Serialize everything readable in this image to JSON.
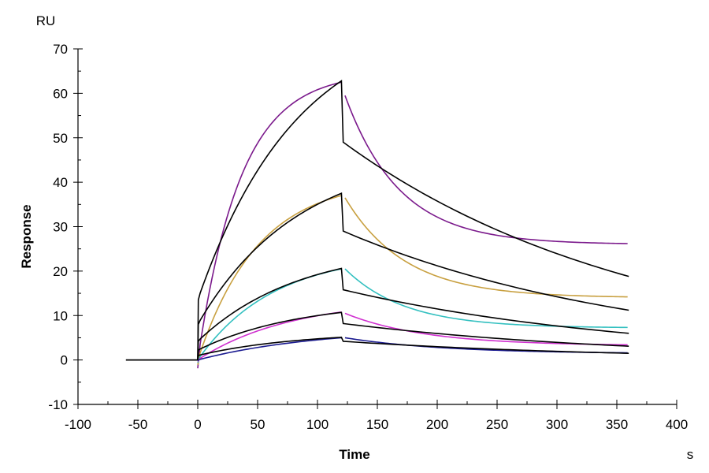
{
  "chart_data": {
    "type": "line",
    "title": "",
    "xlabel": "Time",
    "xunit": "s",
    "ylabel": "Response",
    "yunit": "RU",
    "xlim": [
      -100,
      400
    ],
    "ylim": [
      -10,
      70
    ],
    "xticks": [
      -100,
      -50,
      0,
      50,
      100,
      150,
      200,
      250,
      300,
      350,
      400
    ],
    "yticks": [
      -10,
      0,
      10,
      20,
      30,
      40,
      50,
      60,
      70
    ],
    "xtick_labels": [
      "-100",
      "-50",
      "0",
      "50",
      "100",
      "150",
      "200",
      "250",
      "300",
      "350",
      "400"
    ],
    "ytick_labels": [
      "-10",
      "0",
      "10",
      "20",
      "30",
      "40",
      "50",
      "60",
      "70"
    ],
    "grid": false,
    "legend": "none",
    "association_end": 120,
    "series": [
      {
        "name": "measured-1",
        "color": "#7B1A8C",
        "kind": "measured",
        "plateau": 62.5,
        "kon": 0.028,
        "dissoc_start": 59.5,
        "dissoc_end": 26.0,
        "koff": 0.022
      },
      {
        "name": "measured-2",
        "color": "#C8A040",
        "kind": "measured",
        "plateau": 37.0,
        "kon": 0.02,
        "dissoc_start": 36.5,
        "dissoc_end": 14.0,
        "koff": 0.02
      },
      {
        "name": "measured-3",
        "color": "#33C0C0",
        "kind": "measured",
        "plateau": 20.5,
        "kon": 0.016,
        "dissoc_start": 20.5,
        "dissoc_end": 7.2,
        "koff": 0.02
      },
      {
        "name": "measured-4",
        "color": "#D030D0",
        "kind": "measured",
        "plateau": 10.8,
        "kon": 0.013,
        "dissoc_start": 10.5,
        "dissoc_end": 3.2,
        "koff": 0.015
      },
      {
        "name": "measured-5",
        "color": "#1A1A90",
        "kind": "measured",
        "plateau": 5.0,
        "kon": 0.01,
        "dissoc_start": 5.0,
        "dissoc_end": 1.4,
        "koff": 0.012
      },
      {
        "name": "fit-1",
        "color": "#000000",
        "kind": "fit",
        "jump": 13.5,
        "peak": 62.8,
        "drop_to": 49.0,
        "end": 18.8
      },
      {
        "name": "fit-2",
        "color": "#000000",
        "kind": "fit",
        "jump": 8.0,
        "peak": 37.5,
        "drop_to": 29.0,
        "end": 11.2
      },
      {
        "name": "fit-3",
        "color": "#000000",
        "kind": "fit",
        "jump": 4.2,
        "peak": 20.6,
        "drop_to": 15.8,
        "end": 6.0
      },
      {
        "name": "fit-4",
        "color": "#000000",
        "kind": "fit",
        "jump": 2.2,
        "peak": 10.7,
        "drop_to": 8.2,
        "end": 3.1
      },
      {
        "name": "fit-5",
        "color": "#000000",
        "kind": "fit",
        "jump": 1.0,
        "peak": 5.1,
        "drop_to": 4.2,
        "end": 1.5
      }
    ],
    "baseline": {
      "x_start": -60,
      "x_end": 0,
      "y": 0
    }
  }
}
